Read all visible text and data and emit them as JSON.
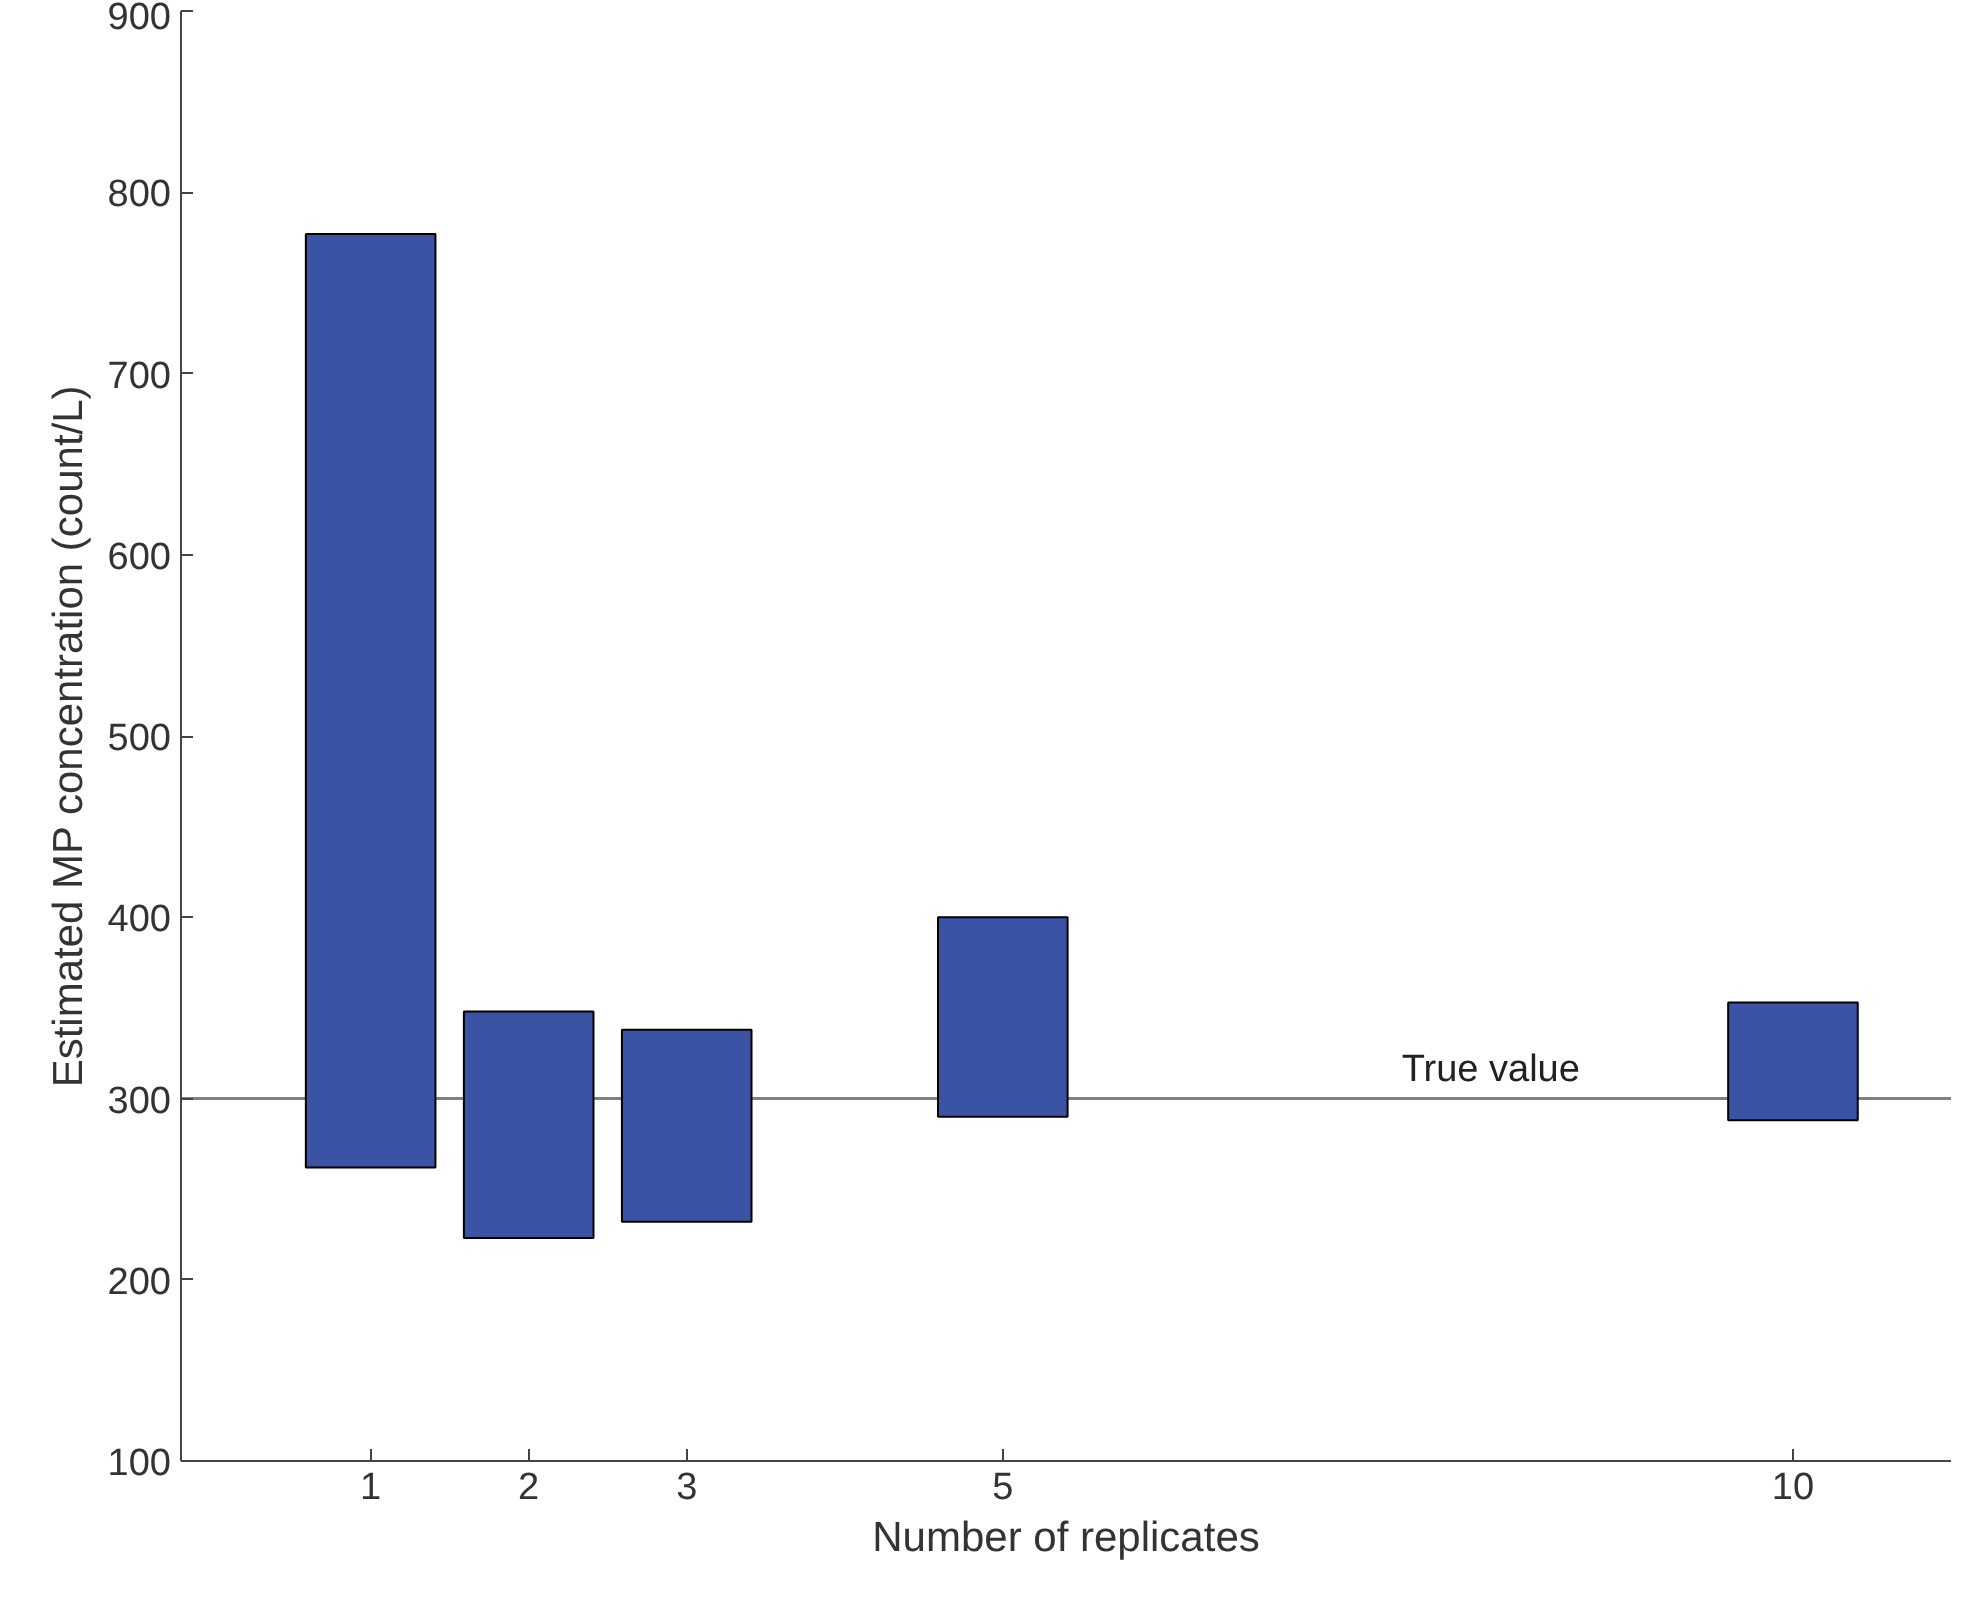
{
  "chart_data": {
    "type": "bar",
    "xlabel": "Number of replicates",
    "ylabel": "Estimated MP concentration (count/L)",
    "x": [
      1,
      2,
      3,
      5,
      10
    ],
    "base": [
      262,
      223,
      232,
      290,
      288
    ],
    "values": [
      515,
      125,
      106,
      110,
      65
    ],
    "color": "#3a53a4",
    "xlim": [
      -0.2,
      11
    ],
    "xticks": [
      1,
      2,
      3,
      5,
      10
    ],
    "ylim": [
      100,
      900
    ],
    "yticks": [
      100,
      200,
      300,
      400,
      500,
      600,
      700,
      800,
      900
    ],
    "ref_lines": [
      {
        "axis": "y",
        "value": 300,
        "label": "True value",
        "color": "#808080"
      }
    ],
    "grid": false
  }
}
